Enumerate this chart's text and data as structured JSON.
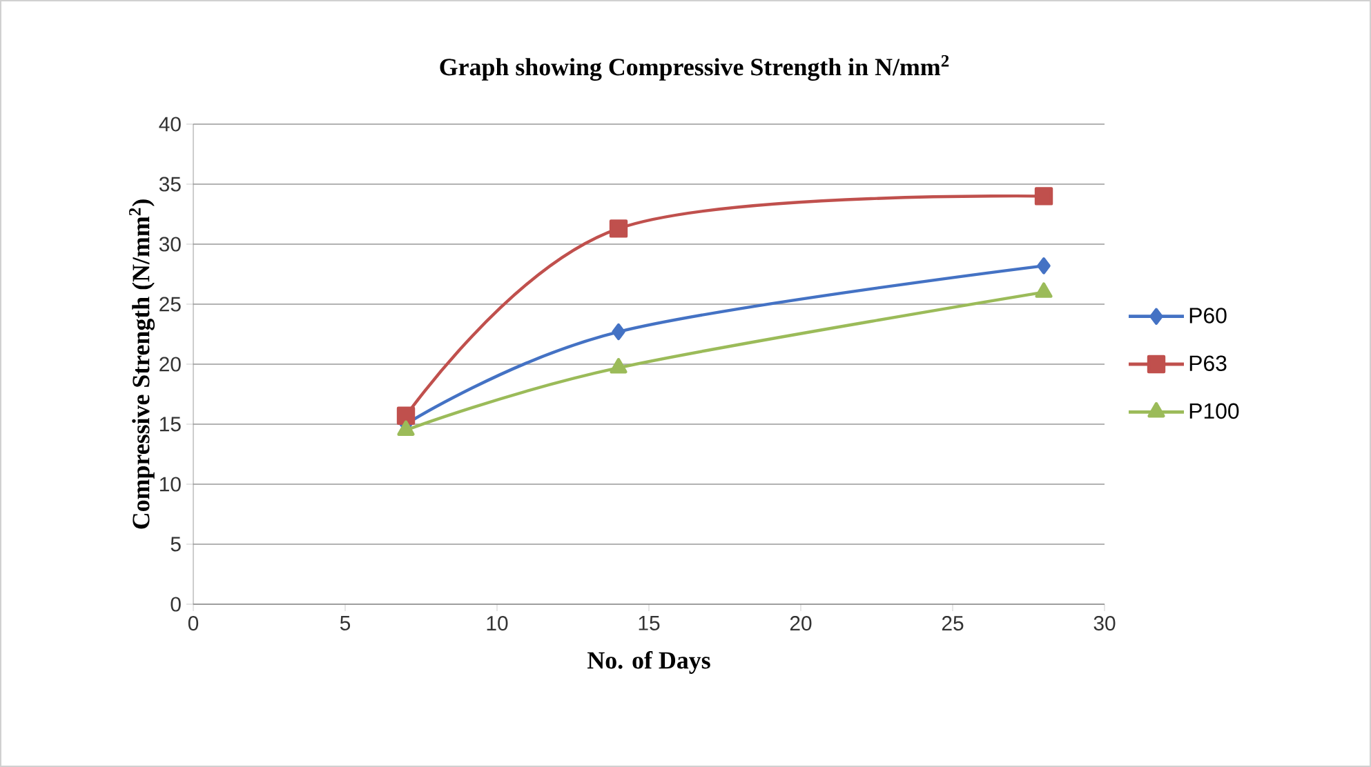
{
  "chart_data": {
    "type": "line",
    "title": "Graph showing Compressive Strength in N/mm$^{2}$",
    "xlabel": "No. of Days",
    "ylabel": "Compressive Strength (N/mm$^{2}$)",
    "xlim": [
      0,
      30
    ],
    "xticks": [
      0,
      5,
      10,
      15,
      20,
      25,
      30
    ],
    "ylim": [
      0,
      40
    ],
    "yticks": [
      0,
      5,
      10,
      15,
      20,
      25,
      30,
      35,
      40
    ],
    "grid": "y",
    "legend": "right",
    "series": [
      {
        "name": "P60",
        "color": "#4472c4",
        "marker": "diamond",
        "x": [
          7,
          14,
          28
        ],
        "values": [
          15.0,
          22.7,
          28.2
        ]
      },
      {
        "name": "P63",
        "color": "#c0504d",
        "marker": "square",
        "x": [
          7,
          14,
          28
        ],
        "values": [
          15.7,
          31.3,
          34.0
        ]
      },
      {
        "name": "P100",
        "color": "#9bbb59",
        "marker": "triangle",
        "x": [
          7,
          14,
          28
        ],
        "values": [
          14.5,
          19.7,
          26.0
        ]
      }
    ]
  }
}
